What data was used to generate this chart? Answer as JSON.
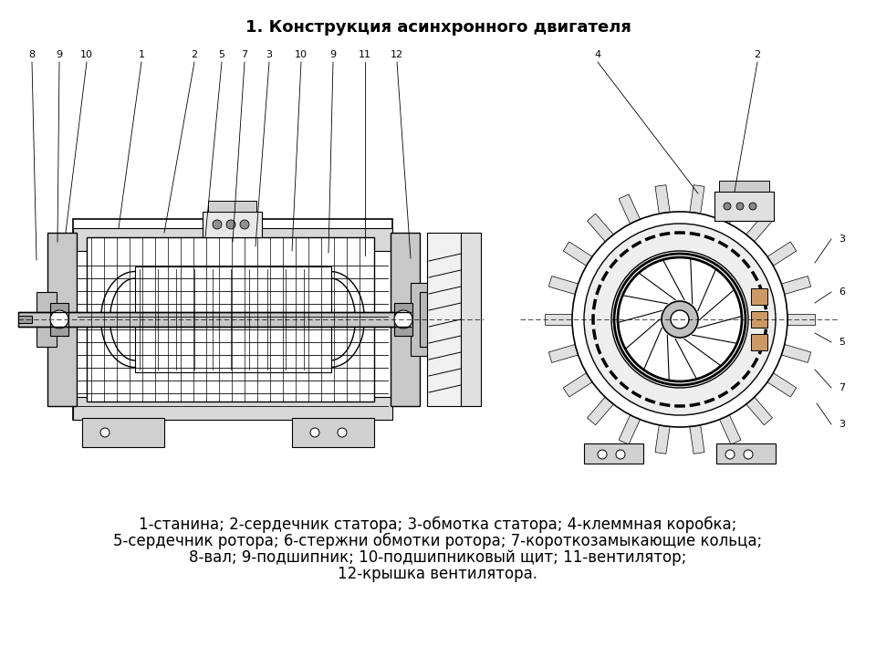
{
  "title": "1. Конструкция асинхронного двигателя",
  "caption_line1": "1-станина; 2-сердечник статора; 3-обмотка статора; 4-клеммная коробка;",
  "caption_line2": "5-сердечник ротора; 6-стержни обмотки ротора; 7-короткозамыкающие кольца;",
  "caption_line3": "8-вал; 9-подшипник; 10-подшипниковый щит; 11-вентилятор;",
  "caption_line4": "12-крышка вентилятора.",
  "bg_color": "#ffffff",
  "line_color": "#000000",
  "title_fontsize": 13,
  "caption_fontsize": 12
}
